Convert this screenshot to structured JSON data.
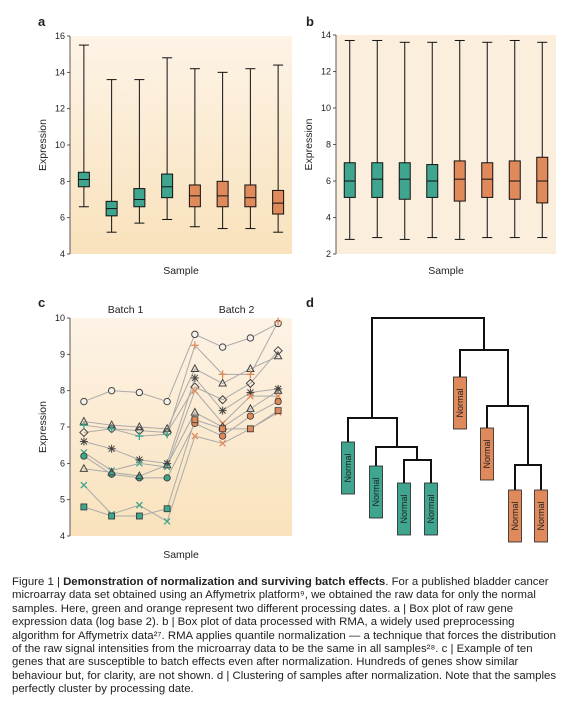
{
  "colors": {
    "green": "#3fa58e",
    "greenDark": "#1e5f52",
    "orange": "#e0895a",
    "orangeDark": "#8a4a28",
    "bgA": "#f9e2bc",
    "bgB": "#fbeedd",
    "line": "#aaaaaa"
  },
  "chart_data": [
    {
      "panel": "a",
      "type": "box",
      "xlabel": "Sample",
      "ylabel": "Expression",
      "ylim": [
        4,
        16
      ],
      "yticks": [
        4,
        6,
        8,
        10,
        12,
        14,
        16
      ],
      "boxes": [
        {
          "group": "green",
          "min": 6.6,
          "q1": 7.7,
          "median": 8.1,
          "q3": 8.5,
          "max": 15.5
        },
        {
          "group": "green",
          "min": 5.2,
          "q1": 6.1,
          "median": 6.5,
          "q3": 6.9,
          "max": 13.6
        },
        {
          "group": "green",
          "min": 5.7,
          "q1": 6.6,
          "median": 7.0,
          "q3": 7.6,
          "max": 13.6
        },
        {
          "group": "green",
          "min": 5.9,
          "q1": 7.1,
          "median": 7.7,
          "q3": 8.4,
          "max": 14.8
        },
        {
          "group": "orange",
          "min": 5.5,
          "q1": 6.6,
          "median": 7.2,
          "q3": 7.8,
          "max": 14.2
        },
        {
          "group": "orange",
          "min": 5.4,
          "q1": 6.6,
          "median": 7.2,
          "q3": 8.0,
          "max": 14.0
        },
        {
          "group": "orange",
          "min": 5.4,
          "q1": 6.6,
          "median": 7.1,
          "q3": 7.8,
          "max": 14.2
        },
        {
          "group": "orange",
          "min": 5.2,
          "q1": 6.2,
          "median": 6.8,
          "q3": 7.5,
          "max": 14.4
        }
      ]
    },
    {
      "panel": "b",
      "type": "box",
      "xlabel": "Sample",
      "ylabel": "Expression",
      "ylim": [
        2,
        14
      ],
      "yticks": [
        2,
        4,
        6,
        8,
        10,
        12,
        14
      ],
      "boxes": [
        {
          "group": "green",
          "min": 2.8,
          "q1": 5.1,
          "median": 6.0,
          "q3": 7.0,
          "max": 13.7
        },
        {
          "group": "green",
          "min": 2.9,
          "q1": 5.1,
          "median": 6.1,
          "q3": 7.0,
          "max": 13.7
        },
        {
          "group": "green",
          "min": 2.8,
          "q1": 5.0,
          "median": 6.1,
          "q3": 7.0,
          "max": 13.6
        },
        {
          "group": "green",
          "min": 2.9,
          "q1": 5.1,
          "median": 6.0,
          "q3": 6.9,
          "max": 13.6
        },
        {
          "group": "orange",
          "min": 2.8,
          "q1": 4.9,
          "median": 6.1,
          "q3": 7.1,
          "max": 13.7
        },
        {
          "group": "orange",
          "min": 2.9,
          "q1": 5.1,
          "median": 6.1,
          "q3": 7.0,
          "max": 13.6
        },
        {
          "group": "orange",
          "min": 2.9,
          "q1": 5.0,
          "median": 6.0,
          "q3": 7.1,
          "max": 13.7
        },
        {
          "group": "orange",
          "min": 2.9,
          "q1": 4.8,
          "median": 6.0,
          "q3": 7.3,
          "max": 13.6
        }
      ]
    },
    {
      "panel": "c",
      "type": "line",
      "xlabel": "Sample",
      "ylabel": "Expression",
      "ylim": [
        4,
        10
      ],
      "yticks": [
        4,
        5,
        6,
        7,
        8,
        9,
        10
      ],
      "batch_labels": [
        "Batch 1",
        "Batch 2"
      ],
      "x": [
        1,
        2,
        3,
        4,
        5,
        6,
        7,
        8
      ],
      "series": [
        {
          "marker": "circle",
          "values": [
            7.7,
            8.0,
            7.95,
            7.7,
            9.55,
            9.2,
            9.45,
            9.85
          ]
        },
        {
          "marker": "triangle",
          "values": [
            7.15,
            7.05,
            7.0,
            6.95,
            8.6,
            8.2,
            8.6,
            8.95
          ]
        },
        {
          "marker": "diamond",
          "values": [
            6.85,
            6.95,
            6.9,
            6.85,
            8.1,
            7.75,
            8.2,
            9.1
          ]
        },
        {
          "marker": "plus",
          "values": [
            7.05,
            6.95,
            6.75,
            6.8,
            9.25,
            8.45,
            8.45,
            9.9
          ]
        },
        {
          "marker": "star",
          "values": [
            6.6,
            6.4,
            6.1,
            6.0,
            8.35,
            7.45,
            7.95,
            8.05
          ]
        },
        {
          "marker": "x",
          "values": [
            6.3,
            5.8,
            6.0,
            5.9,
            8.0,
            7.1,
            7.85,
            7.85
          ]
        },
        {
          "marker": "filledcircle",
          "values": [
            6.2,
            5.7,
            5.6,
            5.6,
            7.1,
            6.75,
            7.3,
            7.7
          ]
        },
        {
          "marker": "triangle2",
          "values": [
            5.85,
            5.75,
            5.65,
            5.95,
            7.4,
            7.0,
            7.5,
            8.0
          ]
        },
        {
          "marker": "x2",
          "values": [
            5.4,
            4.6,
            4.85,
            4.4,
            6.75,
            6.55,
            6.95,
            7.4
          ]
        },
        {
          "marker": "square",
          "values": [
            4.8,
            4.55,
            4.55,
            4.75,
            7.2,
            6.95,
            6.95,
            7.45
          ]
        }
      ]
    },
    {
      "panel": "d",
      "type": "dendrogram",
      "leaves": [
        {
          "label": "Normal",
          "group": "green"
        },
        {
          "label": "Normal",
          "group": "green"
        },
        {
          "label": "Normal",
          "group": "green"
        },
        {
          "label": "Normal",
          "group": "green"
        },
        {
          "label": "Normal",
          "group": "orange"
        },
        {
          "label": "Normal",
          "group": "orange"
        },
        {
          "label": "Normal",
          "group": "orange"
        },
        {
          "label": "Normal",
          "group": "orange"
        }
      ]
    }
  ],
  "letters": {
    "a": "a",
    "b": "b",
    "c": "c",
    "d": "d"
  },
  "caption": {
    "title": "Figure 1 | ",
    "bold": "Demonstration of normalization and surviving batch effects",
    "body": ". For a published bladder cancer microarray data set obtained using an Affymetrix platform⁹, we obtained the raw data for only the normal samples. Here, green and orange represent two different processing dates. a | Box plot of raw gene expression data (log base 2). b | Box plot of data processed with RMA, a widely used preprocessing algorithm for Affymetrix data²⁷. RMA applies quantile normalization — a technique that forces the distribution of the raw signal intensities from the microarray data to be the same in all samples²⁸. c | Example of ten genes that are susceptible to batch effects even after normalization. Hundreds of genes show similar behaviour but, for clarity, are not shown. d | Clustering of samples after normalization. Note that the samples perfectly cluster by processing date."
  }
}
